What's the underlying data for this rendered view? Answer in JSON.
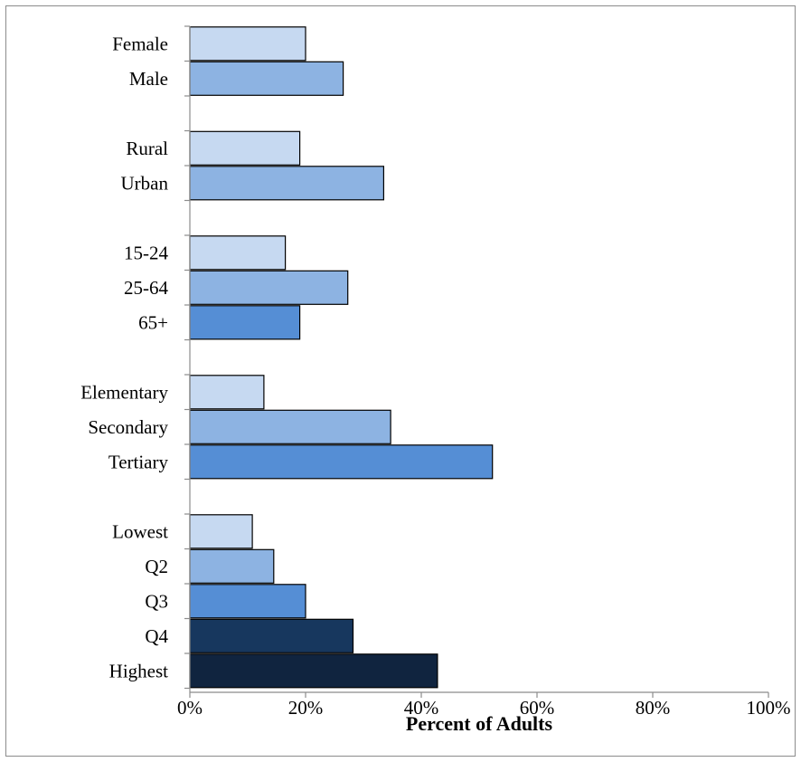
{
  "chart_data": {
    "type": "bar",
    "orientation": "horizontal",
    "xlabel": "Percent of Adults",
    "xlim": [
      0,
      100
    ],
    "x_ticks": [
      "0%",
      "20%",
      "40%",
      "60%",
      "80%",
      "100%"
    ],
    "grid": false,
    "legend": "none",
    "groups": [
      {
        "bars": [
          {
            "label": "Female",
            "value": 20,
            "color": "#c6d9f1"
          },
          {
            "label": "Male",
            "value": 26.5,
            "color": "#8db3e2"
          }
        ]
      },
      {
        "bars": [
          {
            "label": "Rural",
            "value": 19,
            "color": "#c6d9f1"
          },
          {
            "label": "Urban",
            "value": 33.5,
            "color": "#8db3e2"
          }
        ]
      },
      {
        "bars": [
          {
            "label": "15-24",
            "value": 16.5,
            "color": "#c6d9f1"
          },
          {
            "label": "25-64",
            "value": 27.3,
            "color": "#8db3e2"
          },
          {
            "label": "65+",
            "value": 19,
            "color": "#558ed5"
          }
        ]
      },
      {
        "bars": [
          {
            "label": "Elementary",
            "value": 12.8,
            "color": "#c6d9f1"
          },
          {
            "label": "Secondary",
            "value": 34.7,
            "color": "#8db3e2"
          },
          {
            "label": "Tertiary",
            "value": 52.3,
            "color": "#558ed5"
          }
        ]
      },
      {
        "bars": [
          {
            "label": "Lowest",
            "value": 10.8,
            "color": "#c6d9f1"
          },
          {
            "label": "Q2",
            "value": 14.5,
            "color": "#8db3e2"
          },
          {
            "label": "Q3",
            "value": 20,
            "color": "#558ed5"
          },
          {
            "label": "Q4",
            "value": 28.2,
            "color": "#17375e"
          },
          {
            "label": "Highest",
            "value": 42.8,
            "color": "#10243f"
          }
        ]
      }
    ]
  }
}
